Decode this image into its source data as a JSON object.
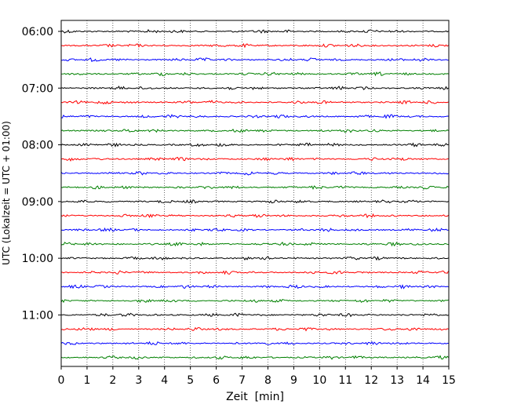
{
  "chart_data": {
    "type": "line",
    "title": "",
    "xlabel": "Zeit  [min]",
    "ylabel": "UTC (Lokalzeit = UTC + 01:00)",
    "xlim": [
      0,
      15
    ],
    "x_ticks": [
      0,
      1,
      2,
      3,
      4,
      5,
      6,
      7,
      8,
      9,
      10,
      11,
      12,
      13,
      14,
      15
    ],
    "grid": "vertical dotted",
    "trace_interval_min": 15,
    "y_tick_labels": [
      "06:00",
      "07:00",
      "08:00",
      "09:00",
      "10:00",
      "11:00"
    ],
    "trace_colors": [
      "#000000",
      "#ff0000",
      "#0000ff",
      "#008000"
    ],
    "trace_start_times": [
      "06:00",
      "06:15",
      "06:30",
      "06:45",
      "07:00",
      "07:15",
      "07:30",
      "07:45",
      "08:00",
      "08:15",
      "08:30",
      "08:45",
      "09:00",
      "09:15",
      "09:30",
      "09:45",
      "10:00",
      "10:15",
      "10:30",
      "10:45",
      "11:00",
      "11:15",
      "11:30",
      "11:45"
    ]
  }
}
